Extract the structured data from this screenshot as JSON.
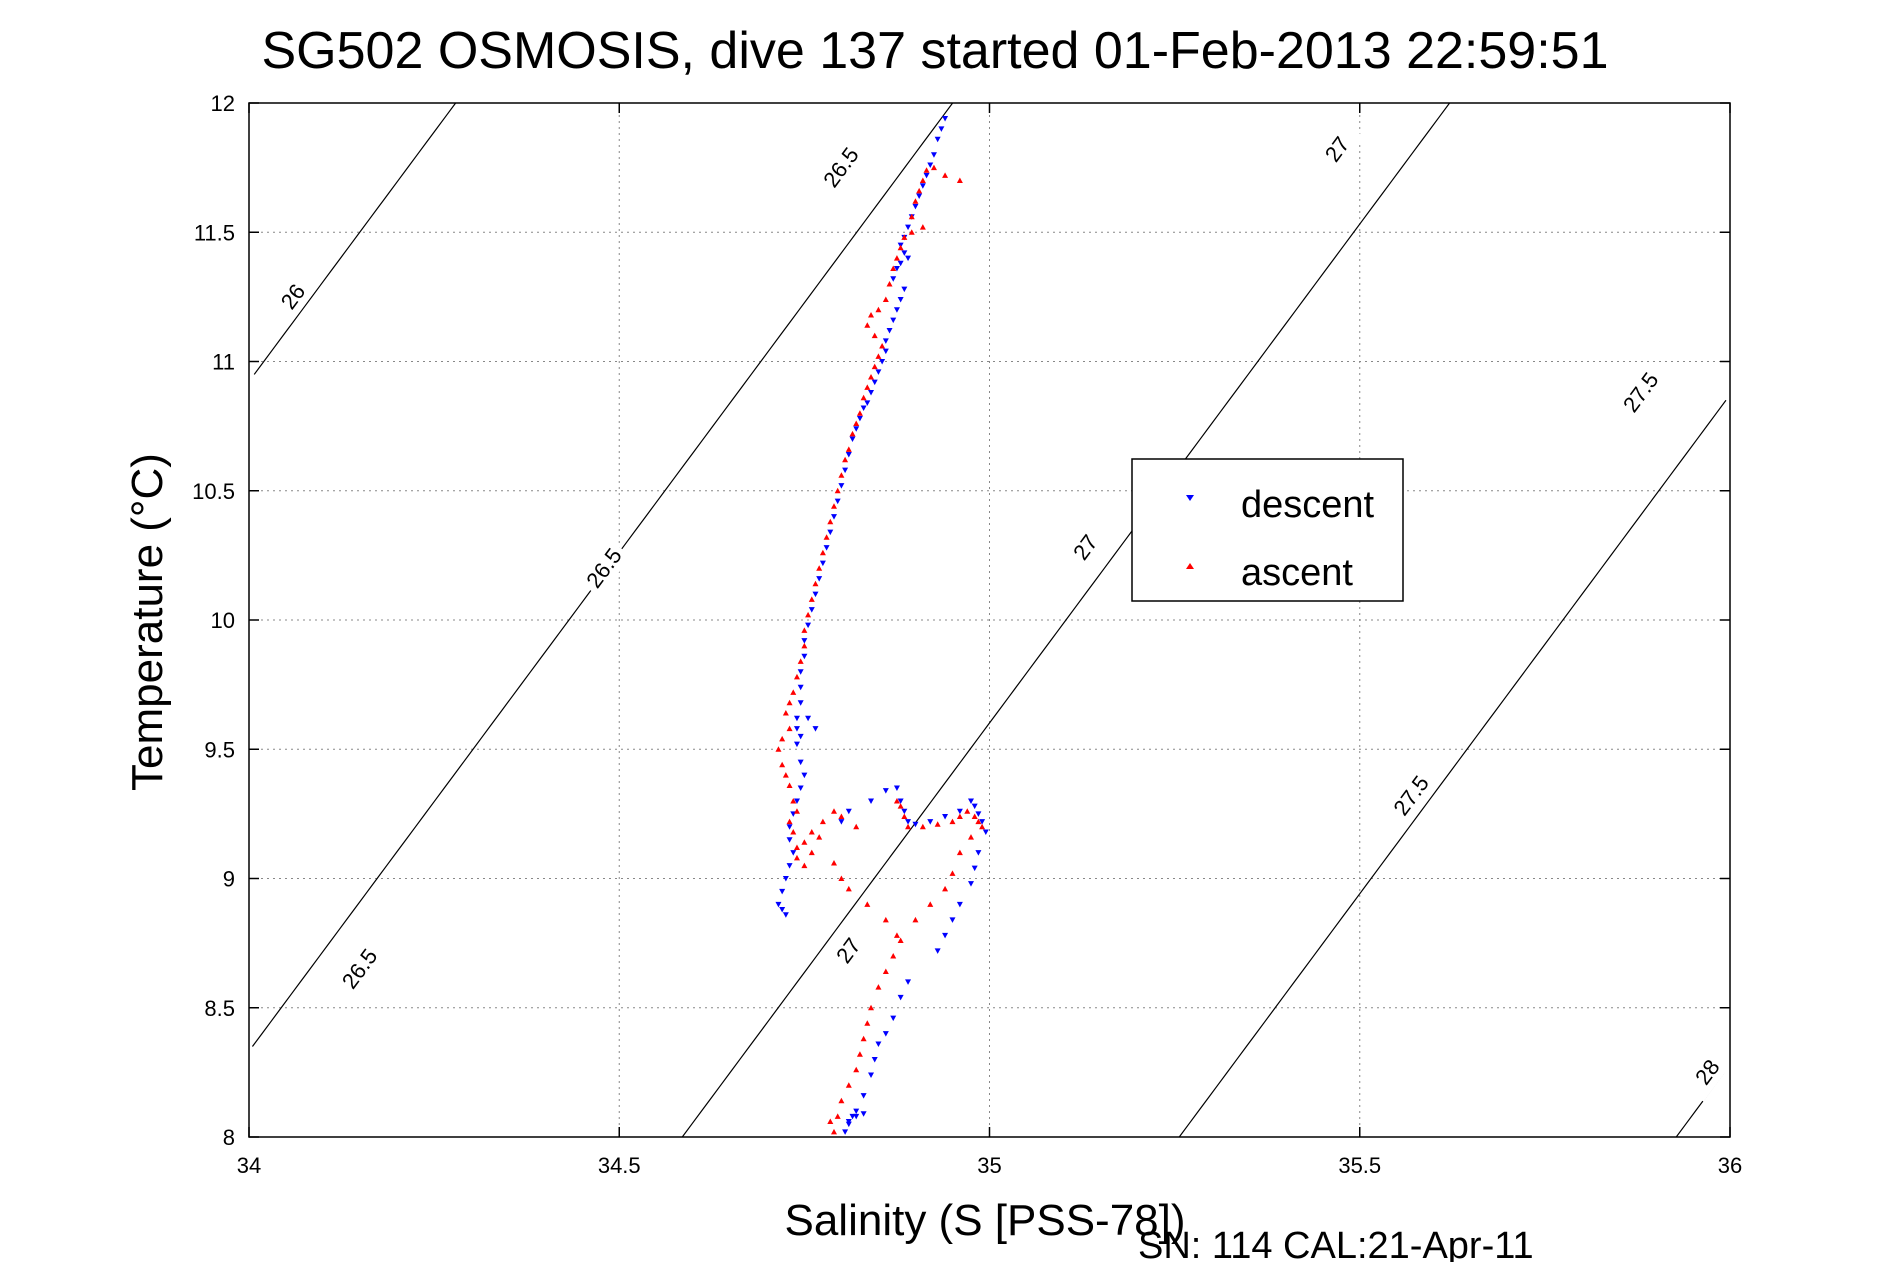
{
  "chart_data": {
    "type": "scatter",
    "title": "SG502 OSMOSIS, dive 137 started 01-Feb-2013 22:59:51",
    "xlabel": "Salinity (S [PSS-78])",
    "ylabel": "Temperature (°C)",
    "xlim": [
      34,
      36
    ],
    "ylim": [
      8,
      12
    ],
    "xticks": [
      "34",
      "34.5",
      "35",
      "35.5",
      "36"
    ],
    "yticks": [
      "8",
      "8.5",
      "9",
      "9.5",
      "10",
      "10.5",
      "11",
      "11.5",
      "12"
    ],
    "grid": true,
    "legend_position": "right-center",
    "footer": "SN: 114  CAL:21-Apr-11",
    "colors": {
      "descent": "#0000ff",
      "ascent": "#ff0000",
      "contour": "#000000"
    },
    "series": [
      {
        "name": "descent",
        "marker": "triangle-down",
        "color": "#0000ff",
        "points": [
          [
            34.94,
            11.94
          ],
          [
            34.935,
            11.9
          ],
          [
            34.93,
            11.86
          ],
          [
            34.925,
            11.8
          ],
          [
            34.92,
            11.76
          ],
          [
            34.915,
            11.72
          ],
          [
            34.91,
            11.68
          ],
          [
            34.905,
            11.64
          ],
          [
            34.9,
            11.6
          ],
          [
            34.895,
            11.56
          ],
          [
            34.89,
            11.52
          ],
          [
            34.885,
            11.48
          ],
          [
            34.88,
            11.45
          ],
          [
            34.885,
            11.42
          ],
          [
            34.89,
            11.4
          ],
          [
            34.88,
            11.38
          ],
          [
            34.875,
            11.36
          ],
          [
            34.87,
            11.32
          ],
          [
            34.885,
            11.28
          ],
          [
            34.88,
            11.24
          ],
          [
            34.875,
            11.2
          ],
          [
            34.87,
            11.16
          ],
          [
            34.865,
            11.12
          ],
          [
            34.86,
            11.08
          ],
          [
            34.86,
            11.04
          ],
          [
            34.855,
            11.0
          ],
          [
            34.85,
            10.96
          ],
          [
            34.845,
            10.92
          ],
          [
            34.84,
            10.88
          ],
          [
            34.835,
            10.84
          ],
          [
            34.83,
            10.82
          ],
          [
            34.825,
            10.78
          ],
          [
            34.82,
            10.74
          ],
          [
            34.815,
            10.7
          ],
          [
            34.81,
            10.64
          ],
          [
            34.805,
            10.58
          ],
          [
            34.8,
            10.52
          ],
          [
            34.795,
            10.46
          ],
          [
            34.79,
            10.4
          ],
          [
            34.785,
            10.34
          ],
          [
            34.78,
            10.28
          ],
          [
            34.775,
            10.22
          ],
          [
            34.77,
            10.16
          ],
          [
            34.765,
            10.1
          ],
          [
            34.76,
            10.04
          ],
          [
            34.755,
            9.98
          ],
          [
            34.75,
            9.92
          ],
          [
            34.75,
            9.86
          ],
          [
            34.745,
            9.8
          ],
          [
            34.745,
            9.74
          ],
          [
            34.745,
            9.68
          ],
          [
            34.74,
            9.62
          ],
          [
            34.74,
            9.58
          ],
          [
            34.745,
            9.55
          ],
          [
            34.755,
            9.62
          ],
          [
            34.765,
            9.58
          ],
          [
            34.74,
            9.52
          ],
          [
            34.745,
            9.45
          ],
          [
            34.75,
            9.4
          ],
          [
            34.745,
            9.35
          ],
          [
            34.74,
            9.3
          ],
          [
            34.735,
            9.25
          ],
          [
            34.73,
            9.2
          ],
          [
            34.73,
            9.15
          ],
          [
            34.735,
            9.1
          ],
          [
            34.73,
            9.05
          ],
          [
            34.725,
            9.0
          ],
          [
            34.72,
            8.95
          ],
          [
            34.715,
            8.9
          ],
          [
            34.72,
            8.88
          ],
          [
            34.725,
            8.86
          ],
          [
            34.8,
            9.22
          ],
          [
            34.81,
            9.26
          ],
          [
            34.84,
            9.3
          ],
          [
            34.86,
            9.34
          ],
          [
            34.875,
            9.35
          ],
          [
            34.88,
            9.3
          ],
          [
            34.885,
            9.26
          ],
          [
            34.89,
            9.22
          ],
          [
            34.9,
            9.21
          ],
          [
            34.92,
            9.22
          ],
          [
            34.94,
            9.24
          ],
          [
            34.96,
            9.26
          ],
          [
            34.975,
            9.3
          ],
          [
            34.98,
            9.28
          ],
          [
            34.985,
            9.25
          ],
          [
            34.99,
            9.22
          ],
          [
            34.995,
            9.18
          ],
          [
            34.985,
            9.1
          ],
          [
            34.98,
            9.04
          ],
          [
            34.975,
            8.98
          ],
          [
            34.96,
            8.9
          ],
          [
            34.95,
            8.84
          ],
          [
            34.94,
            8.78
          ],
          [
            34.93,
            8.72
          ],
          [
            34.89,
            8.6
          ],
          [
            34.88,
            8.54
          ],
          [
            34.87,
            8.46
          ],
          [
            34.86,
            8.4
          ],
          [
            34.85,
            8.36
          ],
          [
            34.845,
            8.3
          ],
          [
            34.84,
            8.24
          ],
          [
            34.83,
            8.16
          ],
          [
            34.82,
            8.1
          ],
          [
            34.815,
            8.08
          ],
          [
            34.81,
            8.05
          ],
          [
            34.805,
            8.02
          ],
          [
            34.81,
            8.06
          ],
          [
            34.82,
            8.08
          ],
          [
            34.83,
            8.09
          ]
        ]
      },
      {
        "name": "ascent",
        "marker": "triangle-up",
        "color": "#ff0000",
        "points": [
          [
            34.96,
            11.7
          ],
          [
            34.94,
            11.72
          ],
          [
            34.925,
            11.75
          ],
          [
            34.915,
            11.74
          ],
          [
            34.91,
            11.7
          ],
          [
            34.905,
            11.66
          ],
          [
            34.9,
            11.62
          ],
          [
            34.895,
            11.56
          ],
          [
            34.91,
            11.52
          ],
          [
            34.895,
            11.5
          ],
          [
            34.885,
            11.48
          ],
          [
            34.88,
            11.44
          ],
          [
            34.875,
            11.4
          ],
          [
            34.87,
            11.36
          ],
          [
            34.865,
            11.3
          ],
          [
            34.86,
            11.24
          ],
          [
            34.85,
            11.2
          ],
          [
            34.84,
            11.18
          ],
          [
            34.835,
            11.14
          ],
          [
            34.845,
            11.1
          ],
          [
            34.855,
            11.06
          ],
          [
            34.85,
            11.02
          ],
          [
            34.845,
            10.98
          ],
          [
            34.84,
            10.94
          ],
          [
            34.835,
            10.9
          ],
          [
            34.83,
            10.86
          ],
          [
            34.825,
            10.8
          ],
          [
            34.82,
            10.76
          ],
          [
            34.815,
            10.72
          ],
          [
            34.81,
            10.66
          ],
          [
            34.805,
            10.62
          ],
          [
            34.8,
            10.56
          ],
          [
            34.795,
            10.5
          ],
          [
            34.79,
            10.44
          ],
          [
            34.785,
            10.38
          ],
          [
            34.78,
            10.32
          ],
          [
            34.775,
            10.26
          ],
          [
            34.77,
            10.2
          ],
          [
            34.765,
            10.14
          ],
          [
            34.76,
            10.08
          ],
          [
            34.755,
            10.02
          ],
          [
            34.75,
            9.96
          ],
          [
            34.75,
            9.9
          ],
          [
            34.745,
            9.84
          ],
          [
            34.74,
            9.78
          ],
          [
            34.735,
            9.72
          ],
          [
            34.73,
            9.68
          ],
          [
            34.725,
            9.64
          ],
          [
            34.73,
            9.58
          ],
          [
            34.72,
            9.54
          ],
          [
            34.715,
            9.5
          ],
          [
            34.72,
            9.44
          ],
          [
            34.725,
            9.4
          ],
          [
            34.73,
            9.36
          ],
          [
            34.735,
            9.3
          ],
          [
            34.74,
            9.26
          ],
          [
            34.73,
            9.22
          ],
          [
            34.735,
            9.18
          ],
          [
            34.74,
            9.12
          ],
          [
            34.75,
            9.14
          ],
          [
            34.76,
            9.18
          ],
          [
            34.775,
            9.22
          ],
          [
            34.79,
            9.26
          ],
          [
            34.8,
            9.24
          ],
          [
            34.82,
            9.2
          ],
          [
            34.74,
            9.08
          ],
          [
            34.75,
            9.05
          ],
          [
            34.76,
            9.1
          ],
          [
            34.77,
            9.16
          ],
          [
            34.875,
            9.3
          ],
          [
            34.88,
            9.28
          ],
          [
            34.885,
            9.24
          ],
          [
            34.89,
            9.2
          ],
          [
            34.91,
            9.2
          ],
          [
            34.93,
            9.21
          ],
          [
            34.95,
            9.22
          ],
          [
            34.96,
            9.24
          ],
          [
            34.97,
            9.26
          ],
          [
            34.98,
            9.24
          ],
          [
            34.985,
            9.22
          ],
          [
            34.99,
            9.2
          ],
          [
            34.975,
            9.16
          ],
          [
            34.96,
            9.1
          ],
          [
            34.95,
            9.02
          ],
          [
            34.94,
            8.96
          ],
          [
            34.92,
            8.9
          ],
          [
            34.9,
            8.84
          ],
          [
            34.88,
            8.76
          ],
          [
            34.87,
            8.7
          ],
          [
            34.86,
            8.64
          ],
          [
            34.85,
            8.58
          ],
          [
            34.84,
            8.5
          ],
          [
            34.835,
            8.44
          ],
          [
            34.83,
            8.38
          ],
          [
            34.825,
            8.32
          ],
          [
            34.82,
            8.26
          ],
          [
            34.81,
            8.2
          ],
          [
            34.8,
            8.14
          ],
          [
            34.795,
            8.08
          ],
          [
            34.79,
            8.02
          ],
          [
            34.785,
            8.06
          ],
          [
            34.79,
            9.06
          ],
          [
            34.8,
            9.0
          ],
          [
            34.81,
            8.96
          ],
          [
            34.835,
            8.9
          ],
          [
            34.86,
            8.84
          ],
          [
            34.875,
            8.78
          ]
        ]
      }
    ],
    "isopycnals": [
      {
        "label": "26",
        "sigma": 26.0,
        "label_positions": [
          [
            34.06,
            11.25
          ]
        ]
      },
      {
        "label": "26.5",
        "sigma": 26.5,
        "label_positions": [
          [
            34.8,
            11.75
          ],
          [
            34.48,
            10.2
          ],
          [
            34.15,
            8.65
          ]
        ]
      },
      {
        "label": "27",
        "sigma": 27.0,
        "label_positions": [
          [
            35.47,
            11.82
          ],
          [
            35.13,
            10.28
          ],
          [
            34.81,
            8.72
          ]
        ]
      },
      {
        "label": "27.5",
        "sigma": 27.5,
        "label_positions": [
          [
            35.88,
            10.88
          ],
          [
            35.57,
            9.32
          ]
        ]
      },
      {
        "label": "28",
        "sigma": 28.0,
        "label_positions": [
          [
            35.97,
            8.25
          ]
        ]
      }
    ]
  }
}
